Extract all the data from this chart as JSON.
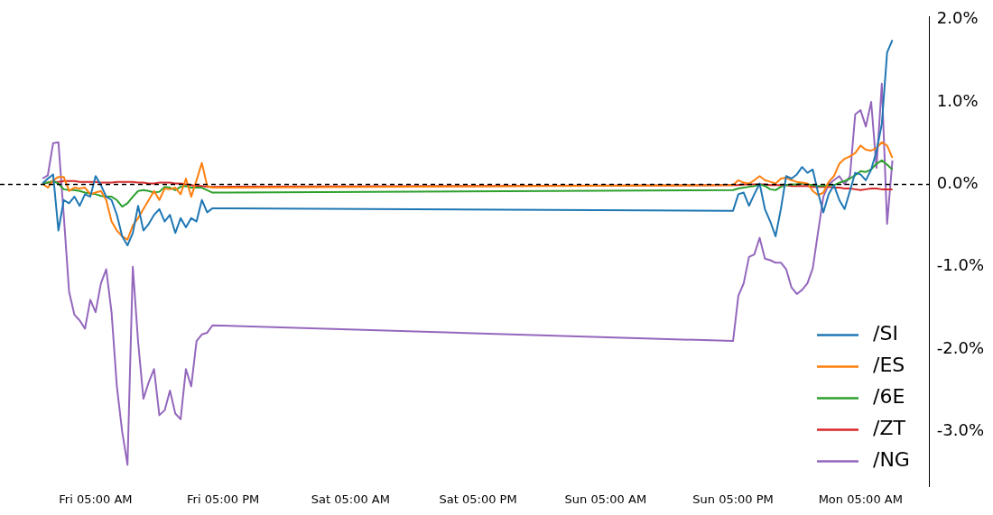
{
  "chart_data": {
    "type": "line",
    "legend": "bottom right",
    "ylim": [
      -3.66,
      2.03
    ],
    "categories": [
      null,
      null,
      null,
      null,
      null,
      null,
      null,
      null,
      null,
      null,
      null,
      null,
      null,
      null,
      null,
      null,
      null,
      null,
      "Fri 05:00 AM",
      null,
      null,
      null,
      null,
      null,
      null,
      null,
      null,
      null,
      null,
      null,
      null,
      null,
      null,
      null,
      null,
      null,
      null,
      null,
      null,
      null,
      null,
      null,
      "Fri 05:00 PM",
      null,
      null,
      null,
      null,
      null,
      null,
      null,
      null,
      null,
      null,
      null,
      null,
      null,
      null,
      null,
      null,
      null,
      null,
      null,
      null,
      null,
      null,
      null,
      "Sat 05:00 AM",
      null,
      null,
      null,
      null,
      null,
      null,
      null,
      null,
      null,
      null,
      null,
      null,
      null,
      null,
      null,
      null,
      null,
      null,
      null,
      null,
      null,
      null,
      null,
      "Sat 05:00 PM",
      null,
      null,
      null,
      null,
      null,
      null,
      null,
      null,
      null,
      null,
      null,
      null,
      null,
      null,
      null,
      null,
      null,
      null,
      null,
      null,
      null,
      null,
      null,
      "Sun 05:00 AM",
      null,
      null,
      null,
      null,
      null,
      null,
      null,
      null,
      null,
      null,
      null,
      null,
      null,
      null,
      null,
      null,
      null,
      null,
      null,
      null,
      null,
      null,
      null,
      "Sun 05:00 PM",
      null,
      null,
      null,
      null,
      null,
      null,
      null,
      null,
      null,
      null,
      null,
      null,
      null,
      null,
      null,
      null,
      null,
      null,
      null,
      null,
      null,
      null,
      null,
      "Mon 05:00 AM",
      null,
      null,
      null,
      null,
      null,
      null,
      null,
      null,
      null,
      null,
      null,
      null,
      null
    ],
    "yticks": [
      {
        "value": -3,
        "label": "-3.0%"
      },
      {
        "value": -2,
        "label": "-2.0%"
      },
      {
        "value": -1,
        "label": "-1.0%"
      },
      {
        "value": 0,
        "label": "0.0%"
      },
      {
        "value": 1,
        "label": "1.0%"
      },
      {
        "value": 2,
        "label": "2.0%"
      }
    ],
    "ref_lines": [
      {
        "axis": "y",
        "value": 0,
        "color": "#000000",
        "line_style": "dashed"
      }
    ],
    "series": [
      {
        "name": "/SI",
        "color": "#1f77b4",
        "values": [
          null,
          null,
          null,
          null,
          null,
          null,
          null,
          null,
          0.01,
          0.07,
          0.12,
          -0.56,
          -0.19,
          -0.23,
          -0.15,
          -0.26,
          -0.12,
          -0.15,
          0.1,
          -0.01,
          -0.15,
          -0.19,
          -0.37,
          -0.63,
          -0.74,
          -0.59,
          -0.26,
          -0.56,
          -0.48,
          -0.37,
          -0.3,
          -0.45,
          -0.37,
          -0.59,
          -0.41,
          -0.52,
          -0.41,
          -0.45,
          -0.19,
          -0.34,
          -0.29,
          null,
          null,
          null,
          null,
          null,
          null,
          null,
          null,
          null,
          null,
          null,
          null,
          null,
          null,
          null,
          null,
          null,
          null,
          null,
          null,
          null,
          null,
          null,
          null,
          null,
          null,
          null,
          null,
          null,
          null,
          null,
          null,
          null,
          null,
          null,
          null,
          null,
          null,
          null,
          null,
          null,
          null,
          null,
          null,
          null,
          null,
          null,
          null,
          null,
          null,
          null,
          null,
          null,
          null,
          null,
          null,
          null,
          null,
          null,
          null,
          null,
          null,
          null,
          null,
          null,
          null,
          null,
          null,
          null,
          null,
          null,
          null,
          null,
          null,
          null,
          null,
          null,
          null,
          null,
          null,
          null,
          null,
          null,
          null,
          null,
          null,
          null,
          null,
          null,
          null,
          null,
          null,
          null,
          null,
          null,
          null,
          null,
          -0.32,
          -0.12,
          -0.1,
          -0.26,
          -0.12,
          0.01,
          -0.3,
          -0.45,
          -0.63,
          -0.3,
          0.1,
          0.07,
          0.12,
          0.21,
          0.14,
          0.18,
          -0.1,
          -0.34,
          -0.12,
          -0.01,
          -0.19,
          -0.3,
          -0.08,
          0.14,
          0.12,
          0.05,
          0.18,
          0.4,
          0.73,
          1.6,
          1.75,
          null,
          null,
          null,
          null,
          null,
          null,
          null
        ]
      },
      {
        "name": "/ES",
        "color": "#ff7f0e",
        "values": [
          null,
          null,
          null,
          null,
          null,
          null,
          null,
          null,
          0.01,
          -0.04,
          0.05,
          0.09,
          0.09,
          -0.08,
          -0.04,
          -0.05,
          -0.04,
          -0.12,
          -0.1,
          -0.08,
          -0.19,
          -0.45,
          -0.56,
          -0.63,
          -0.67,
          -0.5,
          -0.41,
          -0.3,
          -0.19,
          -0.08,
          -0.19,
          -0.05,
          -0.06,
          -0.04,
          -0.12,
          0.07,
          -0.15,
          0.05,
          0.26,
          -0.02,
          -0.04,
          null,
          null,
          null,
          null,
          null,
          null,
          null,
          null,
          null,
          null,
          null,
          null,
          null,
          null,
          null,
          null,
          null,
          null,
          null,
          null,
          null,
          null,
          null,
          null,
          null,
          null,
          null,
          null,
          null,
          null,
          null,
          null,
          null,
          null,
          null,
          null,
          null,
          null,
          null,
          null,
          null,
          null,
          null,
          null,
          null,
          null,
          null,
          null,
          null,
          null,
          null,
          null,
          null,
          null,
          null,
          null,
          null,
          null,
          null,
          null,
          null,
          null,
          null,
          null,
          null,
          null,
          null,
          null,
          null,
          null,
          null,
          null,
          null,
          null,
          null,
          null,
          null,
          null,
          null,
          null,
          null,
          null,
          null,
          null,
          null,
          null,
          null,
          null,
          null,
          null,
          null,
          null,
          null,
          null,
          null,
          null,
          null,
          -0.01,
          0.05,
          0.02,
          0.01,
          0.05,
          0.1,
          0.05,
          0.03,
          0.01,
          0.07,
          0.08,
          0.05,
          0.03,
          0.02,
          0.01,
          -0.08,
          -0.13,
          -0.1,
          0.03,
          0.1,
          0.25,
          0.31,
          0.34,
          0.38,
          0.47,
          0.42,
          0.41,
          0.44,
          0.51,
          0.47,
          0.32,
          null,
          null,
          null,
          null,
          null,
          null,
          null
        ]
      },
      {
        "name": "/6E",
        "color": "#2ca02c",
        "values": [
          null,
          null,
          null,
          null,
          null,
          null,
          null,
          null,
          0.01,
          0.02,
          0.04,
          0.01,
          -0.06,
          -0.07,
          -0.07,
          -0.08,
          -0.1,
          -0.11,
          -0.12,
          -0.14,
          -0.15,
          -0.15,
          -0.19,
          -0.27,
          -0.23,
          -0.15,
          -0.08,
          -0.07,
          -0.08,
          -0.1,
          -0.09,
          -0.03,
          -0.04,
          -0.07,
          -0.03,
          -0.02,
          -0.04,
          -0.04,
          -0.04,
          -0.07,
          -0.1,
          null,
          null,
          null,
          null,
          null,
          null,
          null,
          null,
          null,
          null,
          null,
          null,
          null,
          null,
          null,
          null,
          null,
          null,
          null,
          null,
          null,
          null,
          null,
          null,
          null,
          null,
          null,
          null,
          null,
          null,
          null,
          null,
          null,
          null,
          null,
          null,
          null,
          null,
          null,
          null,
          null,
          null,
          null,
          null,
          null,
          null,
          null,
          null,
          null,
          null,
          null,
          null,
          null,
          null,
          null,
          null,
          null,
          null,
          null,
          null,
          null,
          null,
          null,
          null,
          null,
          null,
          null,
          null,
          null,
          null,
          null,
          null,
          null,
          null,
          null,
          null,
          null,
          null,
          null,
          null,
          null,
          null,
          null,
          null,
          null,
          null,
          null,
          null,
          null,
          null,
          null,
          null,
          null,
          null,
          null,
          null,
          null,
          -0.07,
          -0.05,
          -0.04,
          -0.03,
          -0.02,
          0.0,
          -0.02,
          -0.06,
          -0.07,
          -0.03,
          -0.01,
          0.0,
          0.0,
          0.01,
          0.0,
          -0.01,
          -0.02,
          -0.02,
          -0.01,
          -0.01,
          0.02,
          0.04,
          0.07,
          0.11,
          0.16,
          0.15,
          0.18,
          0.25,
          0.29,
          0.24,
          0.18,
          null,
          null,
          null,
          null,
          null,
          null,
          null
        ]
      },
      {
        "name": "/ZT",
        "color": "#d62728",
        "values": [
          null,
          null,
          null,
          null,
          null,
          null,
          null,
          null,
          0.01,
          0.02,
          0.03,
          0.03,
          0.04,
          0.04,
          0.04,
          0.03,
          0.03,
          0.03,
          0.03,
          0.02,
          0.02,
          0.02,
          0.03,
          0.03,
          0.03,
          0.03,
          0.02,
          0.02,
          0.01,
          0.01,
          0.02,
          0.02,
          0.02,
          0.01,
          0.01,
          0.0,
          -0.01,
          -0.02,
          -0.02,
          -0.03,
          -0.03,
          null,
          null,
          null,
          null,
          null,
          null,
          null,
          null,
          null,
          null,
          null,
          null,
          null,
          null,
          null,
          null,
          null,
          null,
          null,
          null,
          null,
          null,
          null,
          null,
          null,
          null,
          null,
          null,
          null,
          null,
          null,
          null,
          null,
          null,
          null,
          null,
          null,
          null,
          null,
          null,
          null,
          null,
          null,
          null,
          null,
          null,
          null,
          null,
          null,
          null,
          null,
          null,
          null,
          null,
          null,
          null,
          null,
          null,
          null,
          null,
          null,
          null,
          null,
          null,
          null,
          null,
          null,
          null,
          null,
          null,
          null,
          null,
          null,
          null,
          null,
          null,
          null,
          null,
          null,
          null,
          null,
          null,
          null,
          null,
          null,
          null,
          null,
          null,
          null,
          null,
          null,
          null,
          null,
          null,
          null,
          null,
          null,
          -0.01,
          -0.01,
          0.0,
          0.0,
          0.0,
          0.0,
          0.0,
          -0.01,
          -0.01,
          -0.01,
          -0.01,
          -0.02,
          -0.02,
          -0.02,
          -0.02,
          -0.03,
          -0.03,
          -0.03,
          -0.03,
          -0.04,
          -0.04,
          -0.05,
          -0.05,
          -0.06,
          -0.07,
          -0.06,
          -0.05,
          -0.05,
          -0.06,
          -0.06,
          -0.06,
          null,
          null,
          null,
          null,
          null,
          null,
          null
        ]
      },
      {
        "name": "/NG",
        "color": "#9467bd",
        "values": [
          null,
          null,
          null,
          null,
          null,
          null,
          null,
          null,
          0.07,
          0.11,
          0.5,
          0.51,
          -0.37,
          -1.3,
          -1.58,
          -1.65,
          -1.75,
          -1.4,
          -1.55,
          -1.2,
          -1.03,
          -1.55,
          -2.45,
          -3.0,
          -3.4,
          -1.0,
          -1.91,
          -2.6,
          -2.4,
          -2.24,
          -2.8,
          -2.74,
          -2.5,
          -2.78,
          -2.85,
          -2.24,
          -2.45,
          -1.9,
          -1.82,
          -1.8,
          -1.71,
          null,
          null,
          null,
          null,
          null,
          null,
          null,
          null,
          null,
          null,
          null,
          null,
          null,
          null,
          null,
          null,
          null,
          null,
          null,
          null,
          null,
          null,
          null,
          null,
          null,
          null,
          null,
          null,
          null,
          null,
          null,
          null,
          null,
          null,
          null,
          null,
          null,
          null,
          null,
          null,
          null,
          null,
          null,
          null,
          null,
          null,
          null,
          null,
          null,
          null,
          null,
          null,
          null,
          null,
          null,
          null,
          null,
          null,
          null,
          null,
          null,
          null,
          null,
          null,
          null,
          null,
          null,
          null,
          null,
          null,
          null,
          null,
          null,
          null,
          null,
          null,
          null,
          null,
          null,
          null,
          null,
          null,
          null,
          null,
          null,
          null,
          null,
          null,
          null,
          null,
          null,
          null,
          null,
          null,
          null,
          null,
          null,
          -1.9,
          -1.35,
          -1.2,
          -0.88,
          -0.85,
          -0.65,
          -0.9,
          -0.92,
          -0.95,
          -0.95,
          -1.03,
          -1.25,
          -1.33,
          -1.28,
          -1.2,
          -1.02,
          -0.58,
          -0.15,
          0.0,
          0.05,
          0.1,
          0.0,
          0.1,
          0.85,
          0.9,
          0.7,
          1.0,
          0.2,
          1.22,
          -0.48,
          0.29,
          null,
          null,
          null,
          null,
          null,
          null,
          null
        ]
      }
    ]
  }
}
